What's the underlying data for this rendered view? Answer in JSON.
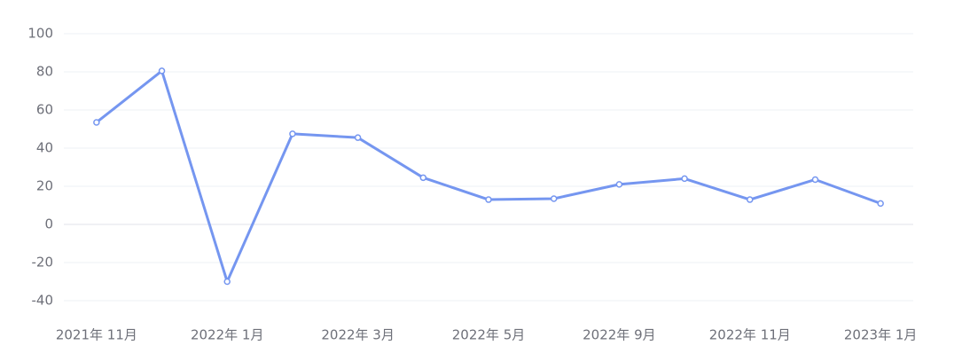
{
  "chart_data": {
    "type": "line",
    "categories": [
      "2021年 11月",
      null,
      "2022年 1月",
      null,
      "2022年 3月",
      null,
      "2022年 5月",
      null,
      "2022年 9月",
      null,
      "2022年 11月",
      null,
      "2023年 1月"
    ],
    "series": [
      {
        "color": "#7596f0",
        "values": [
          53.5,
          80.5,
          -30,
          47.5,
          45.5,
          24.5,
          13,
          13.5,
          21,
          24,
          13,
          23.5,
          11
        ]
      }
    ],
    "ylim": [
      -40,
      100
    ],
    "yticks": [
      -40,
      -20,
      0,
      20,
      40,
      60,
      80,
      100
    ],
    "grid": true
  }
}
